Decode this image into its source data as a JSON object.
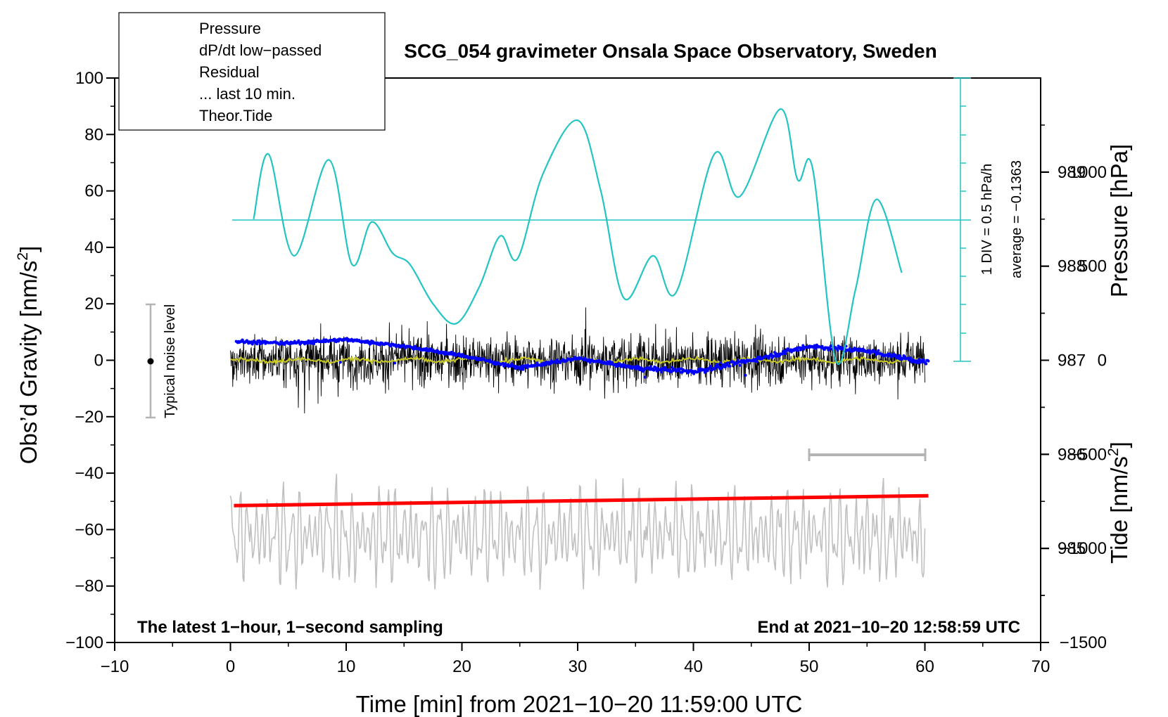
{
  "chart_data": {
    "type": "line",
    "title": "SCG_054 gravimeter Onsala Space Observatory, Sweden",
    "xlabel": "Time [min] from 2021−10−20 11:59:00 UTC",
    "ylabel_left": "Obs’d Gravity [nm/s²]",
    "ylabel_right_top": "Pressure [hPa]",
    "ylabel_right_bottom": "Tide [nm/s²]",
    "xlim": [
      -10,
      70
    ],
    "ylim_left": [
      -100,
      100
    ],
    "xticks": [
      "−10",
      "0",
      "10",
      "20",
      "30",
      "40",
      "50",
      "60",
      "70"
    ],
    "xtick_values": [
      -10,
      0,
      10,
      20,
      30,
      40,
      50,
      60,
      70
    ],
    "yticks_left": [
      "100",
      "80",
      "60",
      "40",
      "20",
      "0",
      "−20",
      "−40",
      "−60",
      "−80",
      "−100"
    ],
    "ytick_values_left": [
      100,
      80,
      60,
      40,
      20,
      0,
      -20,
      -40,
      -60,
      -80,
      -100
    ],
    "pressure_ticks": [
      "989",
      "988",
      "987",
      "986",
      "985"
    ],
    "pressure_tick_values": [
      989,
      988,
      987,
      986,
      985
    ],
    "pressure_range": [
      984,
      990
    ],
    "tide_ticks": [
      "1000",
      "500",
      "0",
      "−500",
      "−1000",
      "−1500"
    ],
    "tide_tick_values": [
      1000,
      500,
      0,
      -500,
      -1000,
      -1500
    ],
    "tide_range": [
      -1500,
      1500
    ],
    "legend": [
      {
        "label": "Pressure",
        "color": "#0000ff",
        "style": "line-dot"
      },
      {
        "label": "dP/dt low−passed",
        "color": "#22c4c4",
        "style": "line-dot"
      },
      {
        "label": "Residual",
        "color": "#000000",
        "style": "line"
      },
      {
        "label": "... last 10 min.",
        "color": "#c0c0c0",
        "style": "line"
      },
      {
        "label": "Theor.Tide",
        "color": "#ff0000",
        "style": "line-dot"
      }
    ],
    "annotations": {
      "noise_label": "Typical noise level",
      "dpdt_scale": "1 DIV = 0.5 hPa/h",
      "dpdt_average": "average = −0.1363",
      "bottom_left": "The latest 1−hour, 1−second sampling",
      "bottom_right": "End at 2021−10−20 12:58:59 UTC"
    },
    "series": [
      {
        "name": "Pressure",
        "units": "hPa",
        "color": "#0000ff",
        "x": [
          0.5,
          5,
          10,
          15,
          20,
          25,
          30,
          35,
          40,
          45,
          50,
          55,
          60
        ],
        "values": [
          987.2,
          987.18,
          987.22,
          987.15,
          987.05,
          986.92,
          987.02,
          986.92,
          986.88,
          987.0,
          987.15,
          987.1,
          986.98
        ]
      },
      {
        "name": "dP/dt low−passed",
        "units": "gravity-axis units",
        "color": "#22c4c4",
        "x": [
          2.0,
          3.3,
          5.5,
          8.5,
          10.5,
          12.2,
          14.0,
          15.5,
          17.5,
          19.5,
          21.5,
          23.3,
          24.8,
          27.0,
          30.0,
          32.0,
          34.0,
          36.5,
          38.5,
          41.8,
          44.0,
          47.5,
          49.0,
          50.3,
          52.3,
          54.0,
          55.8,
          58.0
        ],
        "values": [
          50,
          73,
          37,
          71,
          34,
          49,
          38,
          34,
          20,
          13,
          26,
          44,
          36,
          66,
          85,
          60,
          22,
          37,
          24,
          73,
          58,
          89,
          64,
          68,
          0,
          25,
          57,
          31
        ]
      },
      {
        "name": "Residual",
        "units": "nm/s²",
        "color": "#000000",
        "noise_amplitude": 20,
        "x": [
          0,
          60
        ],
        "values": [
          0,
          0
        ]
      },
      {
        "name": "Residual smoothed",
        "units": "nm/s²",
        "color": "#c8c820",
        "x": [
          0,
          60
        ],
        "values": [
          0,
          0
        ]
      },
      {
        "name": "... last 10 min.",
        "units": "nm/s²",
        "color": "#c0c0c0",
        "offset": -62,
        "amplitude": 22,
        "x": [
          0,
          60
        ],
        "values": [
          -62,
          -62
        ]
      },
      {
        "name": "Theor.Tide",
        "units": "nm/s²",
        "color": "#ff0000",
        "x": [
          0.3,
          60.3
        ],
        "values": [
          -51.5,
          -48.0
        ]
      }
    ]
  }
}
